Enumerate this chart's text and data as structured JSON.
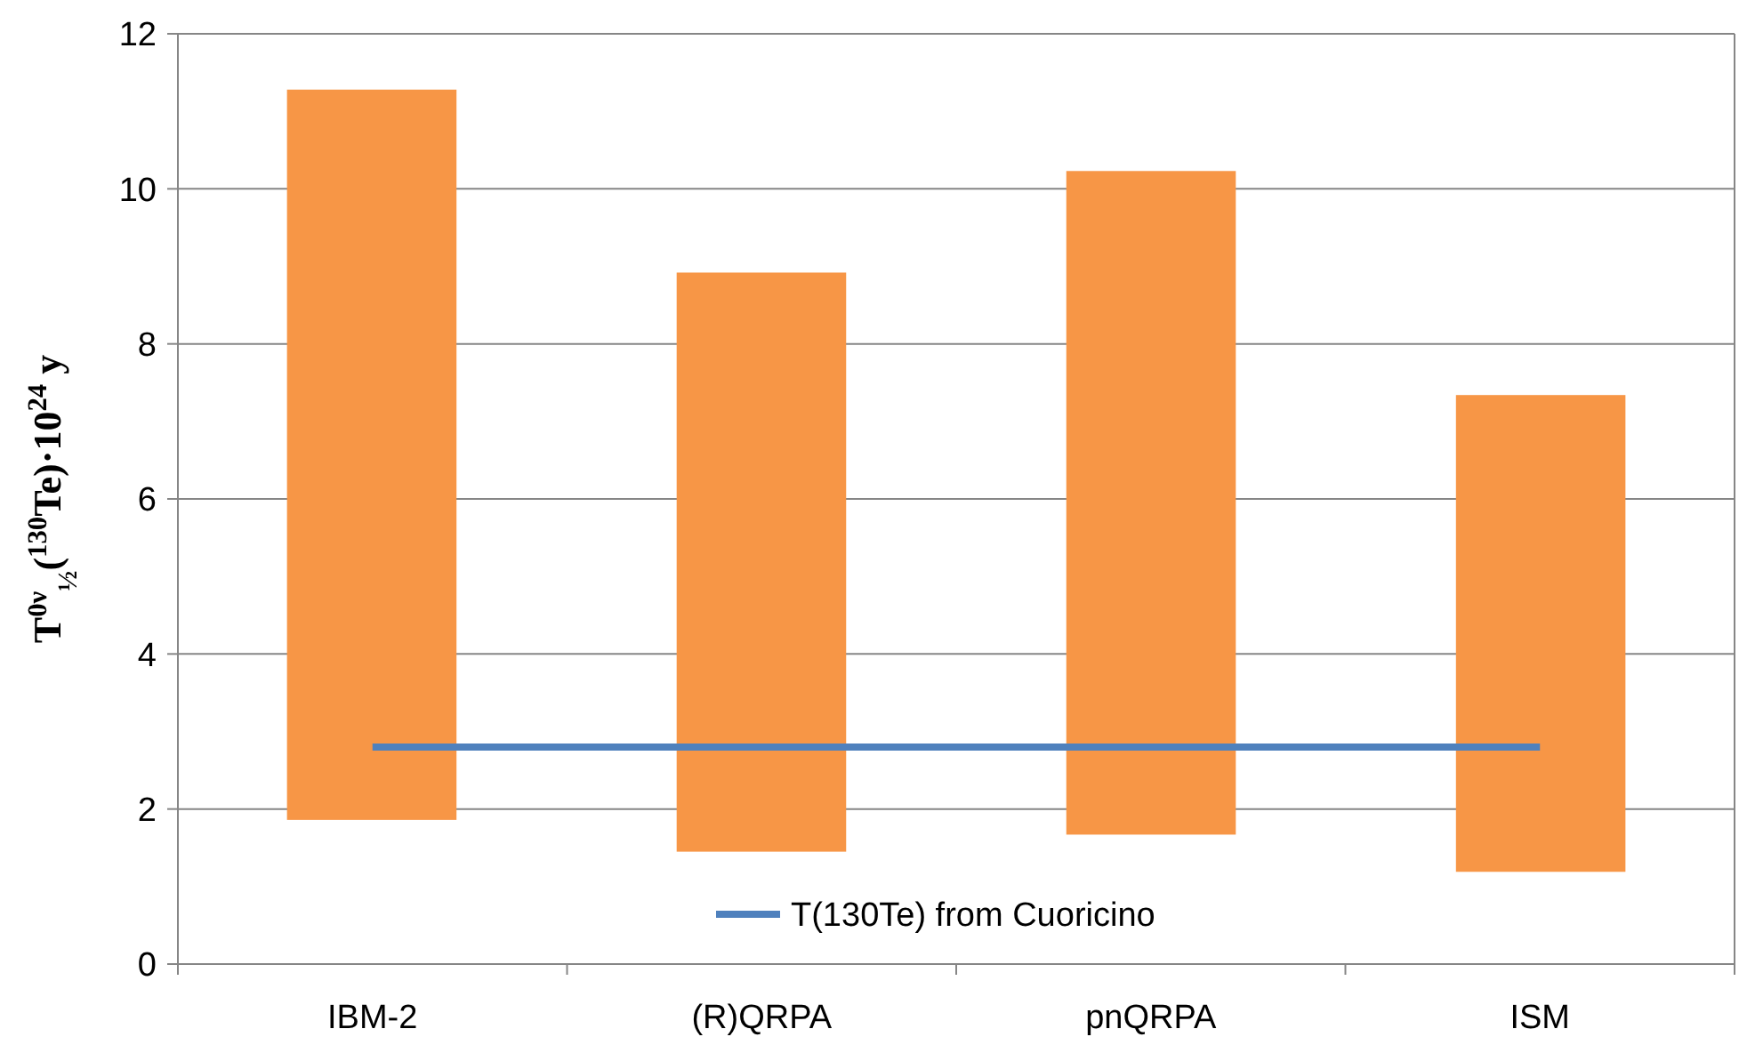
{
  "chart_data": {
    "type": "bar",
    "ylabel": "T$^{0ν}$$_{½}$($^{130}$Te)·10$^{24}$ y",
    "categories": [
      "IBM-2",
      "(R)QRPA",
      "pnQRPA",
      "ISM"
    ],
    "series": [
      {
        "color": "#f79646",
        "base": [
          1.86,
          1.45,
          1.67,
          1.19
        ],
        "values": [
          9.42,
          7.47,
          8.56,
          6.15
        ]
      },
      {
        "type": "line",
        "name": "T(130Te) from Cuoricino",
        "color": "#4f81bd",
        "values": [
          2.8,
          2.8,
          2.8,
          2.8
        ],
        "marker": "none"
      }
    ],
    "ylim": [
      0,
      12
    ],
    "yticks": [
      0,
      2,
      4,
      6,
      8,
      10,
      12
    ],
    "grid": "y",
    "legend": "bottom"
  }
}
